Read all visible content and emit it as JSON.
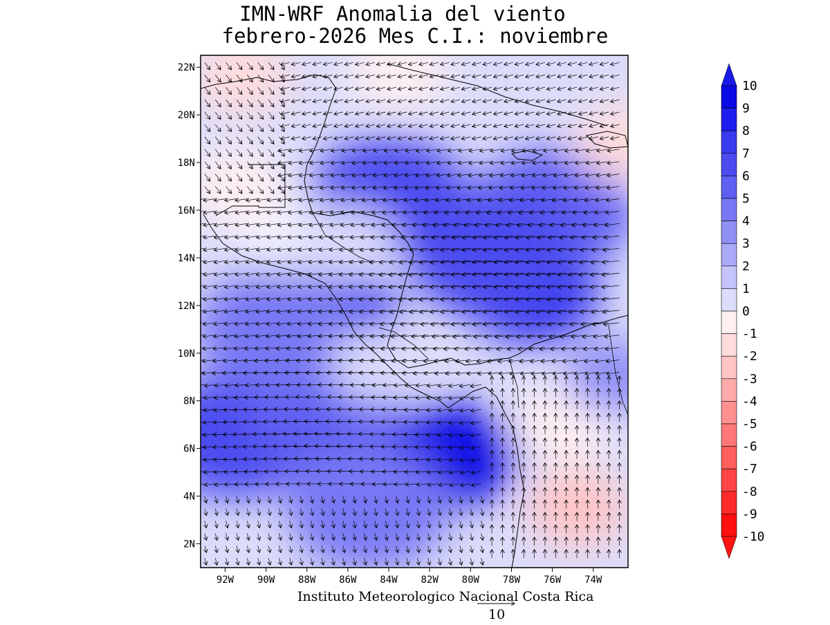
{
  "title": {
    "line1": "IMN-WRF Anomalia del viento",
    "line2": "febrero-2026 Mes C.I.: noviembre"
  },
  "axes": {
    "lat_labels": [
      "22N",
      "20N",
      "18N",
      "16N",
      "14N",
      "12N",
      "10N",
      "8N",
      "6N",
      "4N",
      "2N"
    ],
    "lat_values": [
      22,
      20,
      18,
      16,
      14,
      12,
      10,
      8,
      6,
      4,
      2
    ],
    "lon_labels": [
      "92W",
      "90W",
      "88W",
      "86W",
      "84W",
      "82W",
      "80W",
      "78W",
      "76W",
      "74W"
    ],
    "lon_values": [
      -92,
      -90,
      -88,
      -86,
      -84,
      -82,
      -80,
      -78,
      -76,
      -74
    ],
    "lat_range": [
      1,
      22.5
    ],
    "lon_range": [
      -93.2,
      -72.3
    ]
  },
  "colorbar": {
    "labels": [
      "10",
      "9",
      "8",
      "7",
      "6",
      "5",
      "4",
      "3",
      "2",
      "1",
      "0",
      "-1",
      "-2",
      "-3",
      "-4",
      "-5",
      "-6",
      "-7",
      "-8",
      "-9",
      "-10"
    ],
    "colors": [
      "#0a0ae6",
      "#1e1ef0",
      "#3a3af0",
      "#4b4bf0",
      "#5f5ff2",
      "#7878f4",
      "#9090f6",
      "#aaaaf8",
      "#c4c4fa",
      "#dcdcfc",
      "#f0f0fe",
      "#fff0f0",
      "#ffdcdc",
      "#ffc4c4",
      "#ffaaaa",
      "#ff9090",
      "#ff7878",
      "#ff5f5f",
      "#ff4545",
      "#ff2a2a",
      "#ff1010"
    ],
    "extend_high_color": "#1a1ae8",
    "extend_low_color": "#ff1414"
  },
  "footer": {
    "credit": "Instituto Meteorologico Nacional Costa Rica",
    "vector_ref": "10"
  },
  "map": {
    "background_color": "#dcdcfa",
    "anomaly_regions": [
      {
        "lon": -86.8,
        "lat": 11.5,
        "value": 9
      },
      {
        "lon": -81.0,
        "lat": 5.7,
        "value": 10
      },
      {
        "lon": -77.0,
        "lat": 12.5,
        "value": 8
      },
      {
        "lon": -84.0,
        "lat": 16.5,
        "value": 7
      },
      {
        "lon": -76.0,
        "lat": 16.0,
        "value": 6
      },
      {
        "lon": -91.5,
        "lat": 6.5,
        "value": 7
      },
      {
        "lon": -87.0,
        "lat": 7.5,
        "value": 6
      },
      {
        "lon": -79.0,
        "lat": 14.0,
        "value": 7
      },
      {
        "lon": -89.5,
        "lat": 11.0,
        "value": 5
      },
      {
        "lon": -85.0,
        "lat": 3.5,
        "value": 5
      },
      {
        "lon": -89.0,
        "lat": 15.0,
        "value": 0
      },
      {
        "lon": -86.0,
        "lat": 14.6,
        "value": 1
      },
      {
        "lon": -84.5,
        "lat": 9.5,
        "value": 1
      },
      {
        "lon": -75.5,
        "lat": 7.0,
        "value": -1
      },
      {
        "lon": -74.8,
        "lat": 3.5,
        "value": -3
      },
      {
        "lon": -91.5,
        "lat": 17.0,
        "value": -1
      },
      {
        "lon": -91.2,
        "lat": 21.6,
        "value": -2
      },
      {
        "lon": -83.5,
        "lat": 21.8,
        "value": -1
      },
      {
        "lon": -72.5,
        "lat": 18.8,
        "value": -2
      },
      {
        "lon": -73.0,
        "lat": 9.0,
        "value": 4
      }
    ]
  }
}
